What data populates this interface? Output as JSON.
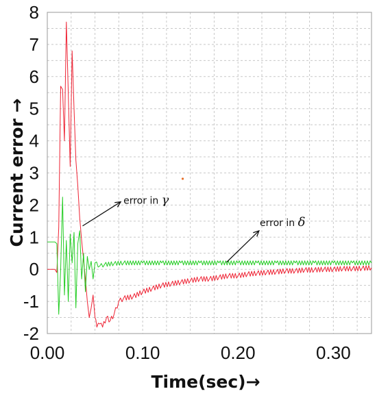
{
  "chart_data": {
    "type": "line",
    "title": "",
    "xlabel": "Time(sec)→",
    "ylabel": "Current error →",
    "xlim": [
      0.0,
      0.34
    ],
    "ylim": [
      -2,
      8
    ],
    "xticks": [
      "0.00",
      "0.10",
      "0.20",
      "0.30"
    ],
    "xtick_values": [
      0.0,
      0.1,
      0.2,
      0.3
    ],
    "yticks": [
      "-2",
      "-1",
      "0",
      "1",
      "2",
      "3",
      "4",
      "5",
      "6",
      "7",
      "8"
    ],
    "ytick_values": [
      -2,
      -1,
      0,
      1,
      2,
      3,
      4,
      5,
      6,
      7,
      8
    ],
    "minor_x_grid_step": 0.025,
    "minor_y_grid_step": 0.5,
    "grid": true,
    "legend": "none",
    "series": [
      {
        "color": "#ee2233",
        "x": [
          0.0,
          0.008,
          0.01,
          0.012,
          0.014,
          0.016,
          0.018,
          0.02,
          0.022,
          0.024,
          0.026,
          0.028,
          0.03,
          0.032,
          0.034,
          0.036,
          0.038,
          0.04,
          0.042,
          0.044,
          0.046,
          0.048,
          0.05,
          0.052,
          0.055,
          0.058,
          0.062,
          0.066,
          0.07,
          0.075,
          0.08,
          0.09,
          0.1,
          0.11,
          0.12,
          0.13,
          0.14,
          0.15,
          0.16,
          0.17,
          0.18,
          0.19,
          0.2,
          0.21,
          0.22,
          0.23,
          0.24,
          0.25,
          0.26,
          0.27,
          0.28,
          0.29,
          0.3,
          0.31,
          0.32,
          0.33,
          0.34
        ],
        "y": [
          0.0,
          0.0,
          -0.1,
          1.3,
          5.7,
          5.6,
          4.0,
          7.7,
          5.5,
          3.2,
          6.8,
          5.0,
          3.4,
          2.6,
          1.6,
          0.9,
          0.3,
          -0.3,
          -1.0,
          -1.5,
          -1.2,
          -0.8,
          -1.5,
          -1.8,
          -1.7,
          -1.8,
          -1.5,
          -1.6,
          -1.4,
          -1.0,
          -0.9,
          -0.85,
          -0.7,
          -0.6,
          -0.5,
          -0.45,
          -0.4,
          -0.35,
          -0.3,
          -0.3,
          -0.25,
          -0.2,
          -0.2,
          -0.15,
          -0.12,
          -0.1,
          -0.08,
          -0.05,
          -0.05,
          -0.02,
          -0.02,
          0.0,
          0.0,
          0.02,
          0.02,
          0.03,
          0.05
        ]
      },
      {
        "color": "#22cc22",
        "x": [
          0.0,
          0.008,
          0.01,
          0.012,
          0.014,
          0.016,
          0.018,
          0.02,
          0.022,
          0.024,
          0.026,
          0.028,
          0.03,
          0.032,
          0.034,
          0.036,
          0.038,
          0.04,
          0.042,
          0.044,
          0.046,
          0.048,
          0.05,
          0.055,
          0.06,
          0.07,
          0.08,
          0.1,
          0.12,
          0.14,
          0.16,
          0.18,
          0.2,
          0.22,
          0.24,
          0.26,
          0.28,
          0.3,
          0.32,
          0.34
        ],
        "y": [
          0.85,
          0.85,
          0.8,
          -1.4,
          0.0,
          2.25,
          -0.8,
          0.9,
          -1.0,
          1.1,
          0.2,
          1.15,
          -1.2,
          0.8,
          1.2,
          -0.3,
          0.5,
          -0.7,
          0.4,
          0.0,
          0.25,
          -0.3,
          0.2,
          0.1,
          0.15,
          0.18,
          0.2,
          0.2,
          0.2,
          0.2,
          0.2,
          0.2,
          0.2,
          0.2,
          0.2,
          0.2,
          0.2,
          0.2,
          0.2,
          0.2
        ]
      }
    ],
    "annotations": [
      {
        "text": "error in ",
        "symbol": "γ",
        "at": [
          0.077,
          2.0
        ],
        "arrow_from": [
          0.037,
          1.35
        ],
        "arrow_to": [
          0.077,
          2.1
        ]
      },
      {
        "text": "error in ",
        "symbol": "δ",
        "at": [
          0.22,
          1.3
        ],
        "arrow_from": [
          0.188,
          0.22
        ],
        "arrow_to": [
          0.222,
          1.2
        ]
      }
    ],
    "stray_marks": [
      {
        "x": 0.142,
        "y": 2.82,
        "color": "#e8702a"
      }
    ]
  }
}
